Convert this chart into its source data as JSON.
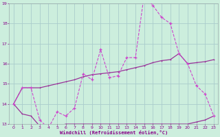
{
  "xlabel": "Windchill (Refroidissement éolien,°C)",
  "background_color": "#cceedd",
  "grid_color": "#aacccc",
  "line_color_main": "#cc44cc",
  "line_color_upper": "#993399",
  "line_color_lower": "#993399",
  "x": [
    0,
    1,
    2,
    3,
    4,
    5,
    6,
    7,
    8,
    9,
    10,
    11,
    12,
    13,
    14,
    15,
    16,
    17,
    18,
    19,
    20,
    21,
    22,
    23
  ],
  "y_main": [
    14.0,
    14.8,
    14.8,
    13.2,
    12.8,
    13.6,
    13.4,
    13.8,
    15.5,
    15.2,
    16.7,
    15.3,
    15.4,
    16.3,
    16.3,
    19.4,
    18.9,
    18.3,
    18.0,
    16.5,
    16.0,
    14.9,
    14.5,
    13.4
  ],
  "y_upper": [
    14.0,
    14.8,
    14.8,
    14.8,
    14.9,
    15.0,
    15.1,
    15.2,
    15.35,
    15.45,
    15.5,
    15.55,
    15.6,
    15.7,
    15.8,
    15.9,
    16.05,
    16.15,
    16.2,
    16.5,
    16.0,
    16.05,
    16.1,
    16.2
  ],
  "y_lower": [
    14.0,
    13.5,
    13.4,
    12.9,
    12.8,
    12.9,
    13.0,
    13.0,
    13.0,
    13.0,
    13.0,
    13.0,
    13.0,
    13.0,
    13.0,
    13.0,
    13.0,
    13.0,
    13.0,
    13.0,
    13.0,
    13.1,
    13.2,
    13.4
  ],
  "ylim": [
    13,
    19
  ],
  "yticks": [
    13,
    14,
    15,
    16,
    17,
    18,
    19
  ],
  "xlim": [
    -0.5,
    23.5
  ],
  "xticks": [
    0,
    1,
    2,
    3,
    4,
    5,
    6,
    7,
    8,
    9,
    10,
    11,
    12,
    13,
    14,
    15,
    16,
    17,
    18,
    19,
    20,
    21,
    22,
    23
  ]
}
